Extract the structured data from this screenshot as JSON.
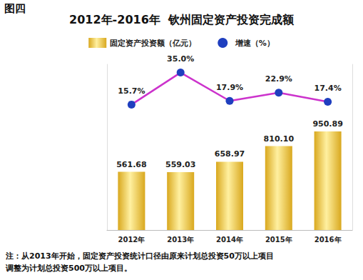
{
  "chart_data": {
    "type": "bar",
    "figure_label": "图四",
    "title": "2012年-2016年  钦州固定资产投资完成额",
    "categories": [
      "2012年",
      "2013年",
      "2014年",
      "2015年",
      "2016年"
    ],
    "series": [
      {
        "name": "固定资产投资额（亿元）",
        "type": "bar",
        "color": "#d9a81e",
        "values": [
          561.68,
          559.03,
          658.97,
          810.1,
          950.89
        ],
        "value_labels": [
          "561.68",
          "559.03",
          "658.97",
          "810.10",
          "950.89"
        ]
      },
      {
        "name": "增速（%）",
        "type": "line",
        "axis": "y2",
        "color": "#cc33cc",
        "marker": "circle",
        "line_style": "solid",
        "values": [
          15.7,
          35.0,
          17.9,
          22.9,
          17.4
        ],
        "value_labels": [
          "15.7%",
          "35.0%",
          "17.9%",
          "22.9%",
          "17.4%"
        ]
      }
    ],
    "ylim": [
      0,
      1600
    ],
    "y2lim": [
      -60,
      40
    ],
    "grid": false,
    "legend": "top",
    "data_labels": true,
    "tick_labels": "x",
    "note": [
      "注：从2013年开始，固定资产投资统计口径由原来计划总投资50万以上项目",
      "调整为计划总投资500万以上项目。"
    ]
  }
}
